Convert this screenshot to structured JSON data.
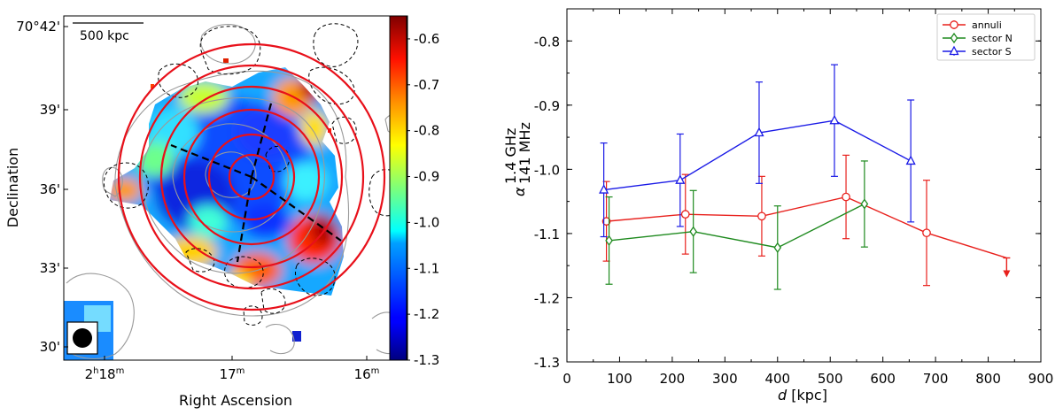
{
  "chart_data": [
    {
      "type": "heatmap",
      "panel": "left",
      "scale_bar_label": "500 kpc",
      "xlabel": "Right Ascension",
      "ylabel": "Declination",
      "x_ticks": [
        {
          "main": "2",
          "sup1": "h",
          "mid": "18",
          "sup2": "m"
        },
        {
          "main": "17",
          "sup1": "m",
          "mid": "",
          "sup2": ""
        },
        {
          "main": "16",
          "sup1": "m",
          "mid": "",
          "sup2": ""
        }
      ],
      "y_ticks": [
        "70°42'",
        "39'",
        "36'",
        "33'",
        "30'"
      ],
      "colorbar": {
        "range": [
          -1.3,
          -0.55
        ],
        "ticks": [
          "-0.6",
          "-0.7",
          "-0.8",
          "-0.9",
          "-1.0",
          "-1.1",
          "-1.2",
          "-1.3"
        ],
        "colormap": "jet"
      }
    },
    {
      "type": "line",
      "panel": "right",
      "xlabel_italic": "d",
      "xlabel_rest": " [kpc]",
      "ylabel_symbol": "α",
      "ylabel_sup": "1.4 GHz",
      "ylabel_sub": "141 MHz",
      "xlim": [
        0,
        900
      ],
      "ylim": [
        -1.3,
        -0.75
      ],
      "x_ticks": [
        "0",
        "100",
        "200",
        "300",
        "400",
        "500",
        "600",
        "700",
        "800",
        "900"
      ],
      "y_ticks": [
        "-0.8",
        "-0.9",
        "-1.0",
        "-1.1",
        "-1.2",
        "-1.3"
      ],
      "legend_position": "top-right",
      "series": [
        {
          "name": "annuli",
          "color": "#e8201c",
          "marker": "circle",
          "x": [
            75,
            225,
            370,
            530,
            683
          ],
          "y": [
            -1.081,
            -1.07,
            -1.073,
            -1.043,
            -1.099
          ],
          "err": [
            0.062,
            0.062,
            0.062,
            0.065,
            0.082
          ],
          "upper_limit": {
            "x": 835,
            "y": -1.138
          }
        },
        {
          "name": "sector N",
          "color": "#1e8a1e",
          "marker": "diamond",
          "x": [
            80,
            240,
            400,
            565
          ],
          "y": [
            -1.111,
            -1.097,
            -1.122,
            -1.054
          ],
          "err": [
            0.068,
            0.064,
            0.065,
            0.067
          ]
        },
        {
          "name": "sector S",
          "color": "#1a1ae6",
          "marker": "triangle",
          "x": [
            70,
            215,
            365,
            508,
            653
          ],
          "y": [
            -1.032,
            -1.017,
            -0.943,
            -0.924,
            -0.987
          ],
          "err": [
            0.073,
            0.072,
            0.079,
            0.087,
            0.095
          ]
        }
      ]
    }
  ]
}
